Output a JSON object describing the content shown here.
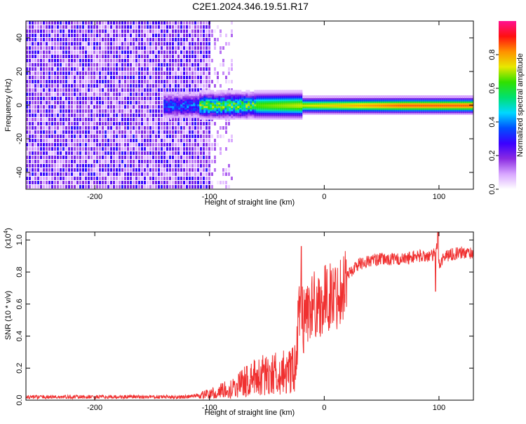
{
  "title": "C2E1.2024.346.19.51.R17",
  "chart_data": [
    {
      "type": "heatmap",
      "xlabel": "Height of straight line (km)",
      "ylabel": "Frequency (Hz)",
      "xlim": [
        -260,
        130
      ],
      "ylim": [
        -50,
        50
      ],
      "xticks": [
        -200,
        -100,
        0,
        100
      ],
      "yticks": [
        -40,
        -20,
        0,
        20,
        40
      ],
      "colorbar": {
        "label": "Normalized spectral amplitude",
        "range": [
          0,
          1
        ],
        "ticks": [
          0.0,
          0.2,
          0.4,
          0.6,
          0.8
        ],
        "colors": [
          "#ffffff",
          "#d8a6ff",
          "#8a2be2",
          "#3a00ff",
          "#0050ff",
          "#00d8ff",
          "#00e070",
          "#30e000",
          "#e8e800",
          "#ff9000",
          "#ff1010",
          "#ff1090"
        ]
      },
      "regions": [
        {
          "name": "noise",
          "x_range": [
            -260,
            -100
          ],
          "y_range": [
            -50,
            50
          ],
          "typical_amplitude": 0.2
        },
        {
          "name": "signal-band",
          "x_range": [
            -140,
            130
          ],
          "center_frequency": 0,
          "half_width": 4,
          "peak_amplitude": 0.95
        }
      ]
    },
    {
      "type": "line",
      "xlabel": "Height of straight line (km)",
      "ylabel": "SNR (10 * v/v)",
      "yscale_label": "(x10^4)",
      "xlim": [
        -260,
        130
      ],
      "ylim": [
        0,
        1.05
      ],
      "xticks": [
        -200,
        -100,
        0,
        100
      ],
      "yticks": [
        0.0,
        0.2,
        0.4,
        0.6,
        0.8,
        1.0
      ],
      "series": [
        {
          "color": "#f03030",
          "x": [
            -260,
            -200,
            -150,
            -120,
            -110,
            -100,
            -90,
            -80,
            -70,
            -60,
            -50,
            -40,
            -30,
            -25,
            -22,
            -20,
            -18,
            -15,
            -10,
            -5,
            0,
            5,
            10,
            15,
            20,
            30,
            40,
            50,
            60,
            70,
            80,
            90,
            95,
            98,
            100,
            105,
            110,
            120,
            130
          ],
          "y": [
            0.02,
            0.02,
            0.02,
            0.02,
            0.03,
            0.04,
            0.06,
            0.08,
            0.12,
            0.15,
            0.17,
            0.18,
            0.18,
            0.2,
            0.5,
            0.55,
            0.5,
            0.55,
            0.6,
            0.6,
            0.62,
            0.65,
            0.65,
            0.7,
            0.78,
            0.85,
            0.87,
            0.88,
            0.88,
            0.88,
            0.9,
            0.9,
            0.9,
            0.95,
            0.85,
            0.9,
            0.91,
            0.92,
            0.92
          ]
        }
      ]
    }
  ]
}
